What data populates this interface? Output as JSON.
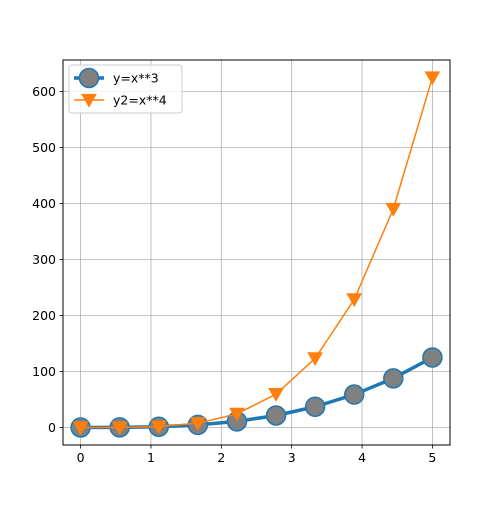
{
  "chart_data": {
    "type": "line",
    "title": "",
    "xlabel": "",
    "ylabel": "",
    "xlim": [
      -0.25,
      5.25
    ],
    "ylim": [
      -31.25,
      656.25
    ],
    "xticks": [
      0,
      1,
      2,
      3,
      4,
      5
    ],
    "yticks": [
      0,
      100,
      200,
      300,
      400,
      500,
      600
    ],
    "grid": true,
    "legend_position": "top-left",
    "x": [
      0,
      0.5556,
      1.1111,
      1.6667,
      2.2222,
      2.7778,
      3.3333,
      3.8889,
      4.4444,
      5.0
    ],
    "series": [
      {
        "name": "y=x**3",
        "values": [
          0,
          0.17,
          1.37,
          4.63,
          10.97,
          21.43,
          37.04,
          58.82,
          87.79,
          125.0
        ],
        "color": "#1f77b4",
        "marker": "circle",
        "marker_color": "#808080"
      },
      {
        "name": "y2=x**4",
        "values": [
          0,
          0.1,
          1.52,
          7.72,
          24.39,
          59.54,
          123.46,
          228.74,
          390.18,
          625.0
        ],
        "color": "#ff7f0e",
        "marker": "triangle-down",
        "marker_color": "#ff7f0e"
      }
    ]
  }
}
